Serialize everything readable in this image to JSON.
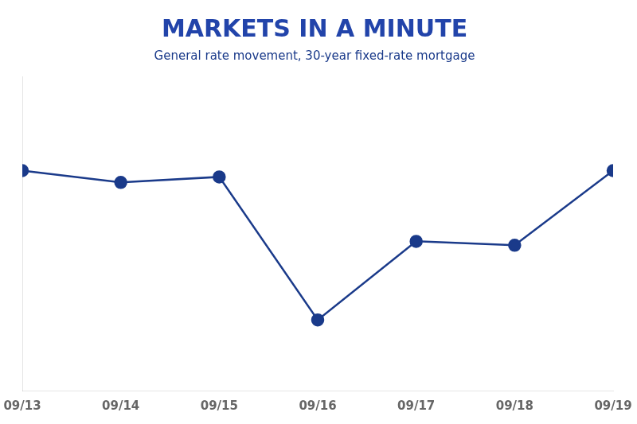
{
  "chart_data": {
    "type": "line",
    "title": "MARKETS IN A MINUTE",
    "subtitle": "General rate movement, 30-year fixed-rate mortgage",
    "categories": [
      "09/13",
      "09/14",
      "09/15",
      "09/16",
      "09/17",
      "09/18",
      "09/19"
    ],
    "values": [
      4.0,
      3.85,
      3.92,
      2.1,
      3.1,
      3.05,
      4.0
    ],
    "color": "#1a3a8a",
    "marker": "circle",
    "ylim": [
      1.2,
      5.2
    ],
    "grid": false,
    "tick_labels": "x"
  }
}
